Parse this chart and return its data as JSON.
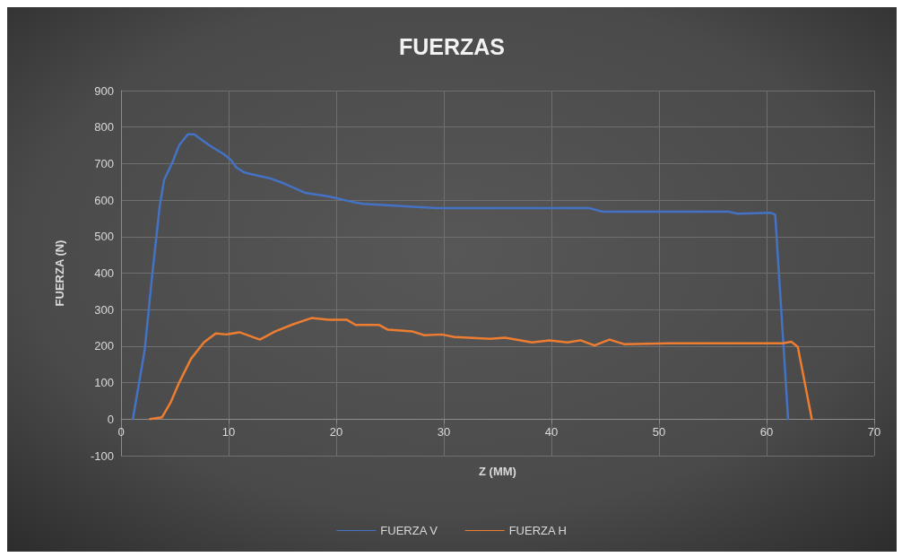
{
  "chart_data": {
    "type": "line",
    "title": "FUERZAS",
    "xlabel": "Z (MM)",
    "ylabel": "FUERZA (N)",
    "xlim": [
      0,
      70
    ],
    "xticks": [
      0,
      10,
      20,
      30,
      40,
      50,
      60,
      70
    ],
    "ylim": [
      -100,
      900
    ],
    "yticks": [
      -100,
      0,
      100,
      200,
      300,
      400,
      500,
      600,
      700,
      800,
      900
    ],
    "grid": true,
    "legend": "bottom",
    "line_style": "solid",
    "series": [
      {
        "name": "FUERZA V",
        "color": "#4472c4",
        "x": [
          1.1,
          2.2,
          2.9,
          3.6,
          4.0,
          4.8,
          5.4,
          6.2,
          6.8,
          8.2,
          9.6,
          10.2,
          10.7,
          11.5,
          13.8,
          15.2,
          17.1,
          19.3,
          21.5,
          22.5,
          25.4,
          29.3,
          43.5,
          44.8,
          47,
          56.5,
          57.3,
          60.4,
          60.8,
          62
        ],
        "values": [
          0,
          190,
          395,
          585,
          655,
          705,
          750,
          780,
          780,
          750,
          725,
          710,
          690,
          675,
          660,
          645,
          620,
          610,
          595,
          590,
          585,
          578,
          578,
          568,
          568,
          568,
          563,
          565,
          560,
          0
        ]
      },
      {
        "name": "FUERZA H",
        "color": "#ed7d31",
        "x": [
          2.7,
          3.8,
          4.6,
          5.4,
          6.5,
          7.7,
          8.8,
          9.8,
          11,
          12.9,
          14.3,
          16,
          17.7,
          19.3,
          21,
          21.8,
          24,
          24.8,
          27.1,
          28.2,
          29.8,
          31,
          34.3,
          35.7,
          38.2,
          39.8,
          41.5,
          42.7,
          44,
          45.4,
          46.8,
          51,
          56.5,
          61.5,
          62.3,
          62.9,
          64.2
        ],
        "values": [
          0,
          5,
          45,
          100,
          165,
          210,
          235,
          232,
          238,
          218,
          240,
          260,
          277,
          272,
          272,
          258,
          258,
          245,
          240,
          230,
          232,
          225,
          220,
          223,
          210,
          216,
          210,
          216,
          202,
          218,
          205,
          208,
          208,
          208,
          212,
          198,
          0
        ]
      }
    ]
  }
}
